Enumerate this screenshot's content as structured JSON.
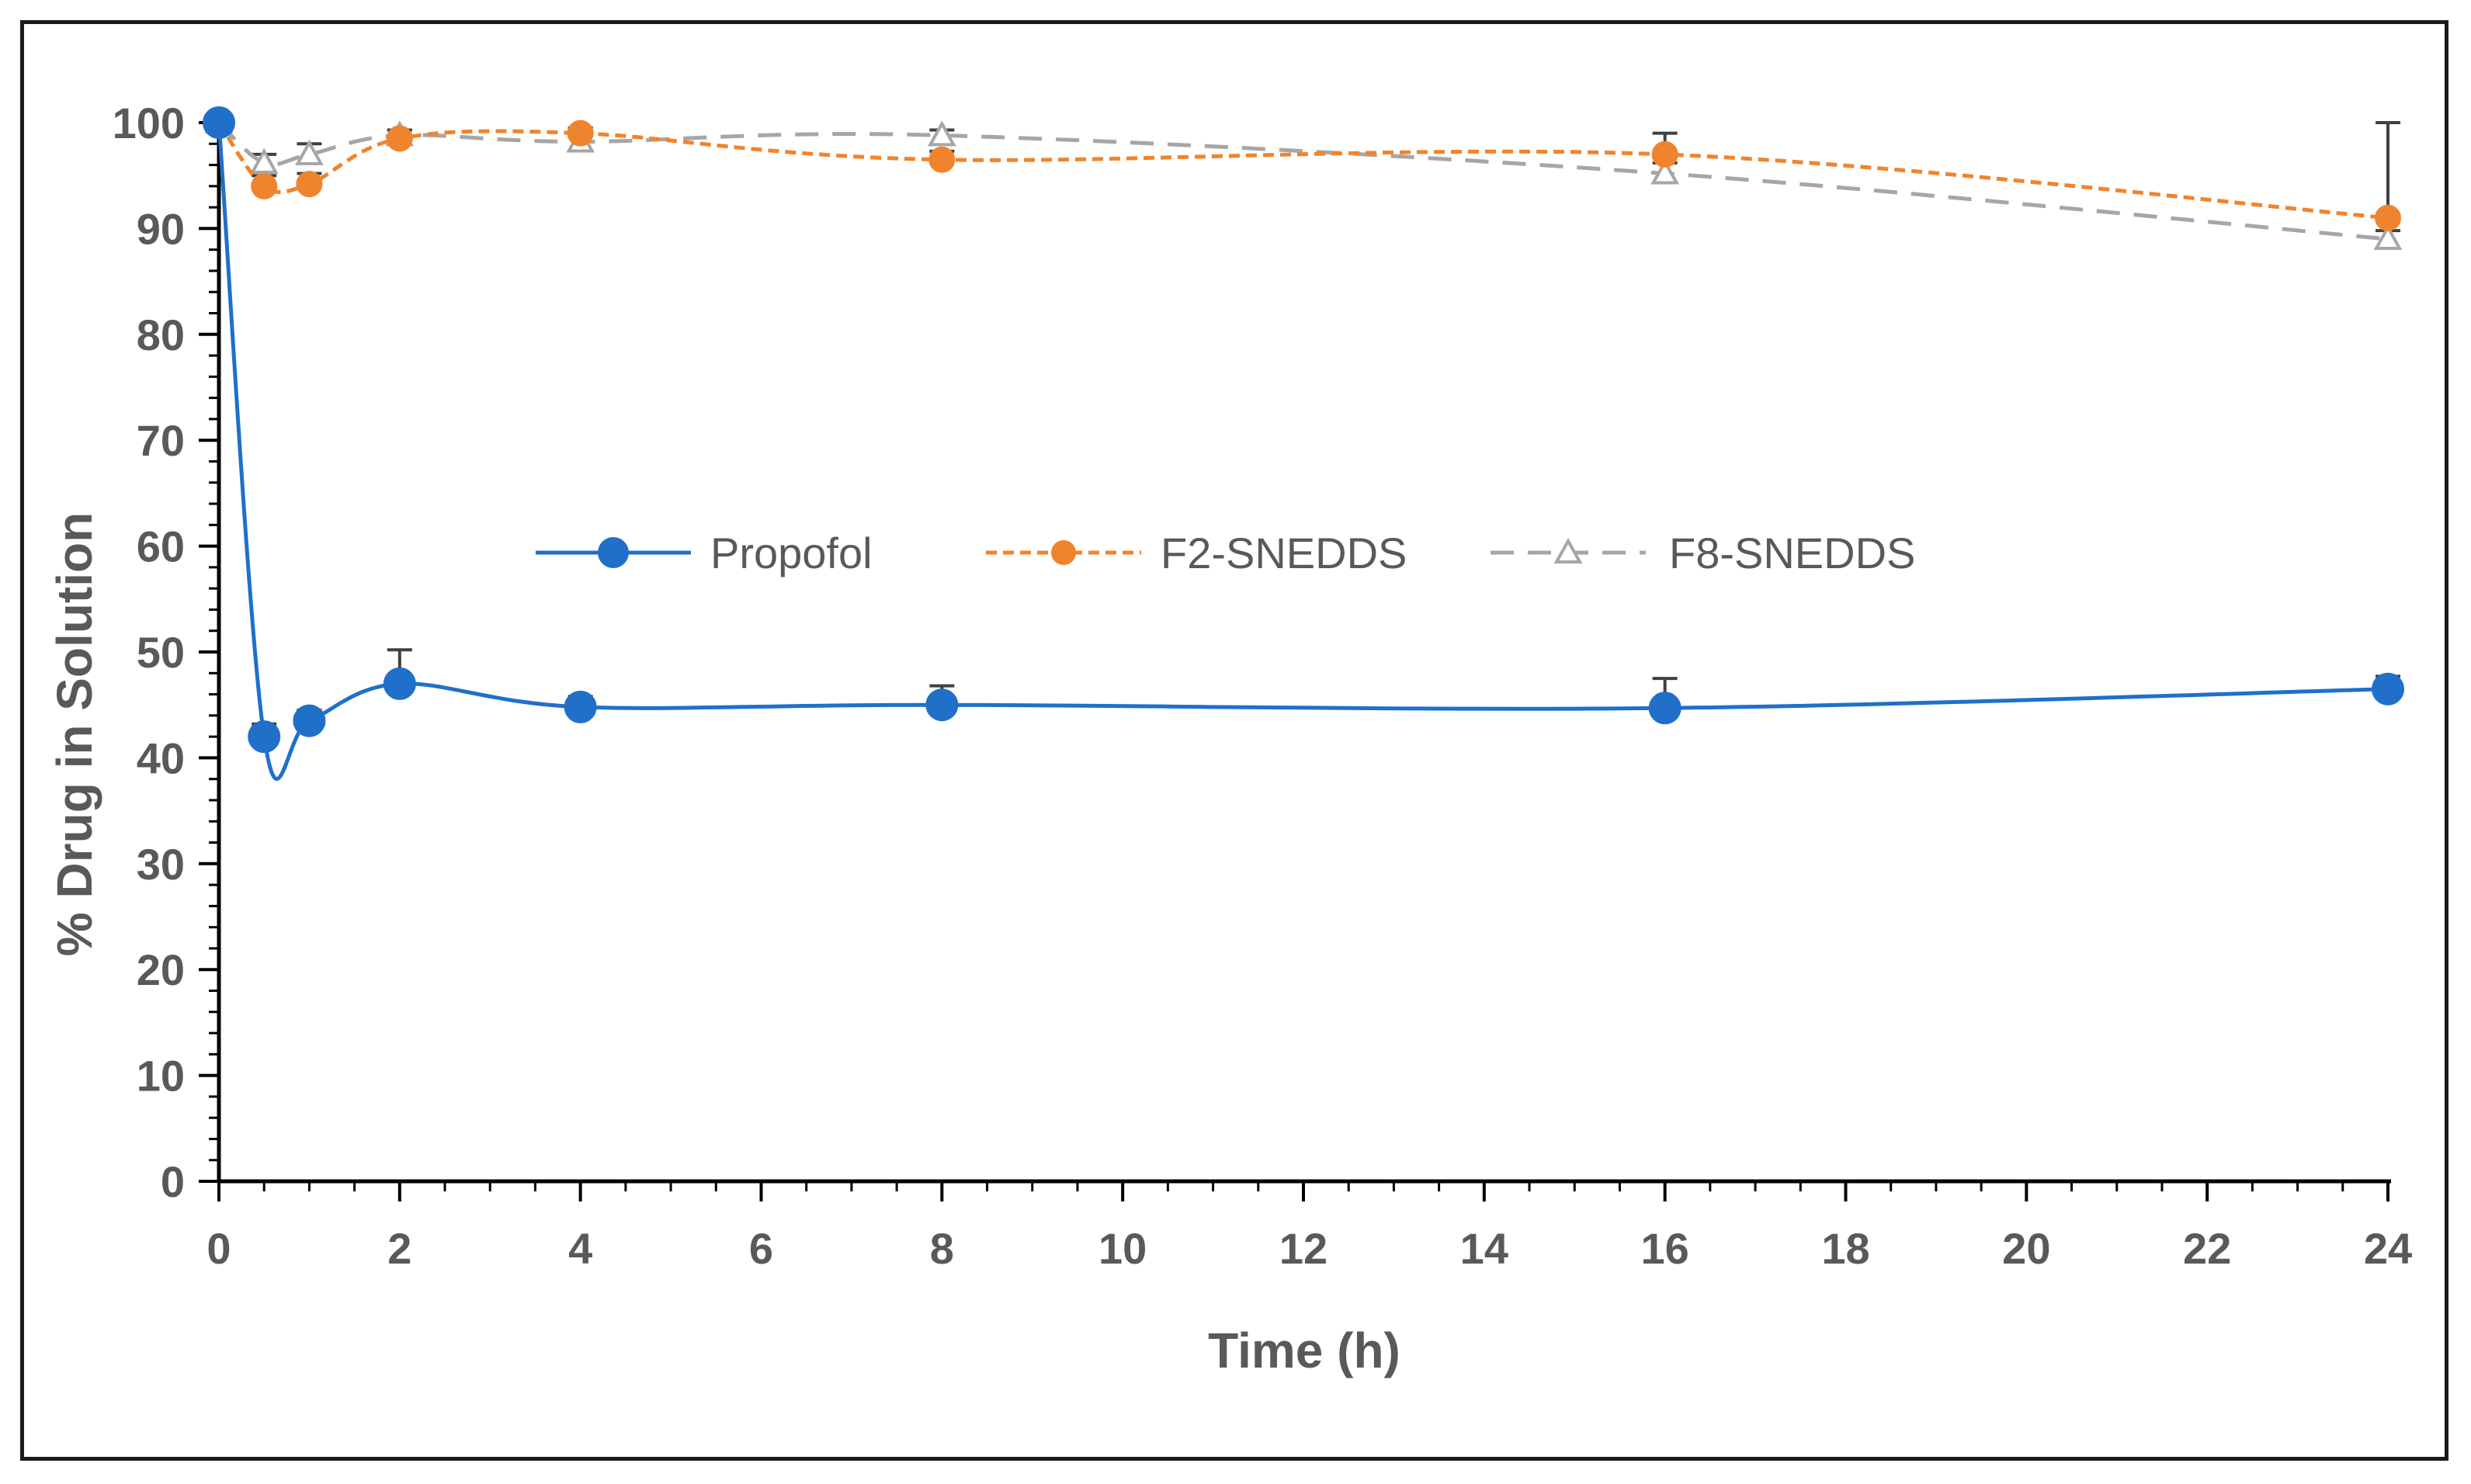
{
  "chart_data": {
    "type": "line",
    "title": "",
    "xlabel": "Time (h)",
    "ylabel": "% Drug in Solution",
    "xlim": [
      0,
      24
    ],
    "ylim": [
      0,
      100
    ],
    "x_ticks": [
      "0",
      "2",
      "4",
      "6",
      "8",
      "10",
      "12",
      "14",
      "16",
      "18",
      "20",
      "22",
      "24"
    ],
    "y_ticks": [
      "0",
      "10",
      "20",
      "30",
      "40",
      "50",
      "60",
      "70",
      "80",
      "90",
      "100"
    ],
    "x": [
      0,
      0.5,
      1,
      2,
      4,
      8,
      16,
      24
    ],
    "legend_position": "center",
    "series": [
      {
        "name": "Propofol",
        "color": "#2070c9",
        "marker": "circle-large",
        "line": "solid",
        "values": [
          100,
          42,
          43.5,
          47,
          44.8,
          45,
          44.7,
          46.5
        ],
        "errors": [
          0,
          1.2,
          1,
          3.2,
          1,
          1.8,
          2.8,
          1.2
        ]
      },
      {
        "name": "F2-SNEDDS",
        "color": "#f0842c",
        "marker": "circle",
        "line": "dotted",
        "values": [
          100,
          94,
          94.2,
          98.5,
          99,
          96.5,
          97,
          91
        ],
        "errors": [
          0,
          1,
          1,
          0.8,
          0.5,
          0.8,
          2,
          9
        ]
      },
      {
        "name": "F8-SNEDDS",
        "color": "#a6a6a6",
        "marker": "triangle-open",
        "line": "dashed",
        "values": [
          100,
          96.2,
          97,
          98.8,
          98.2,
          98.8,
          95.2,
          89
        ],
        "errors": [
          0,
          0.8,
          1,
          0.5,
          0.6,
          0.5,
          1,
          0.8
        ]
      }
    ]
  }
}
